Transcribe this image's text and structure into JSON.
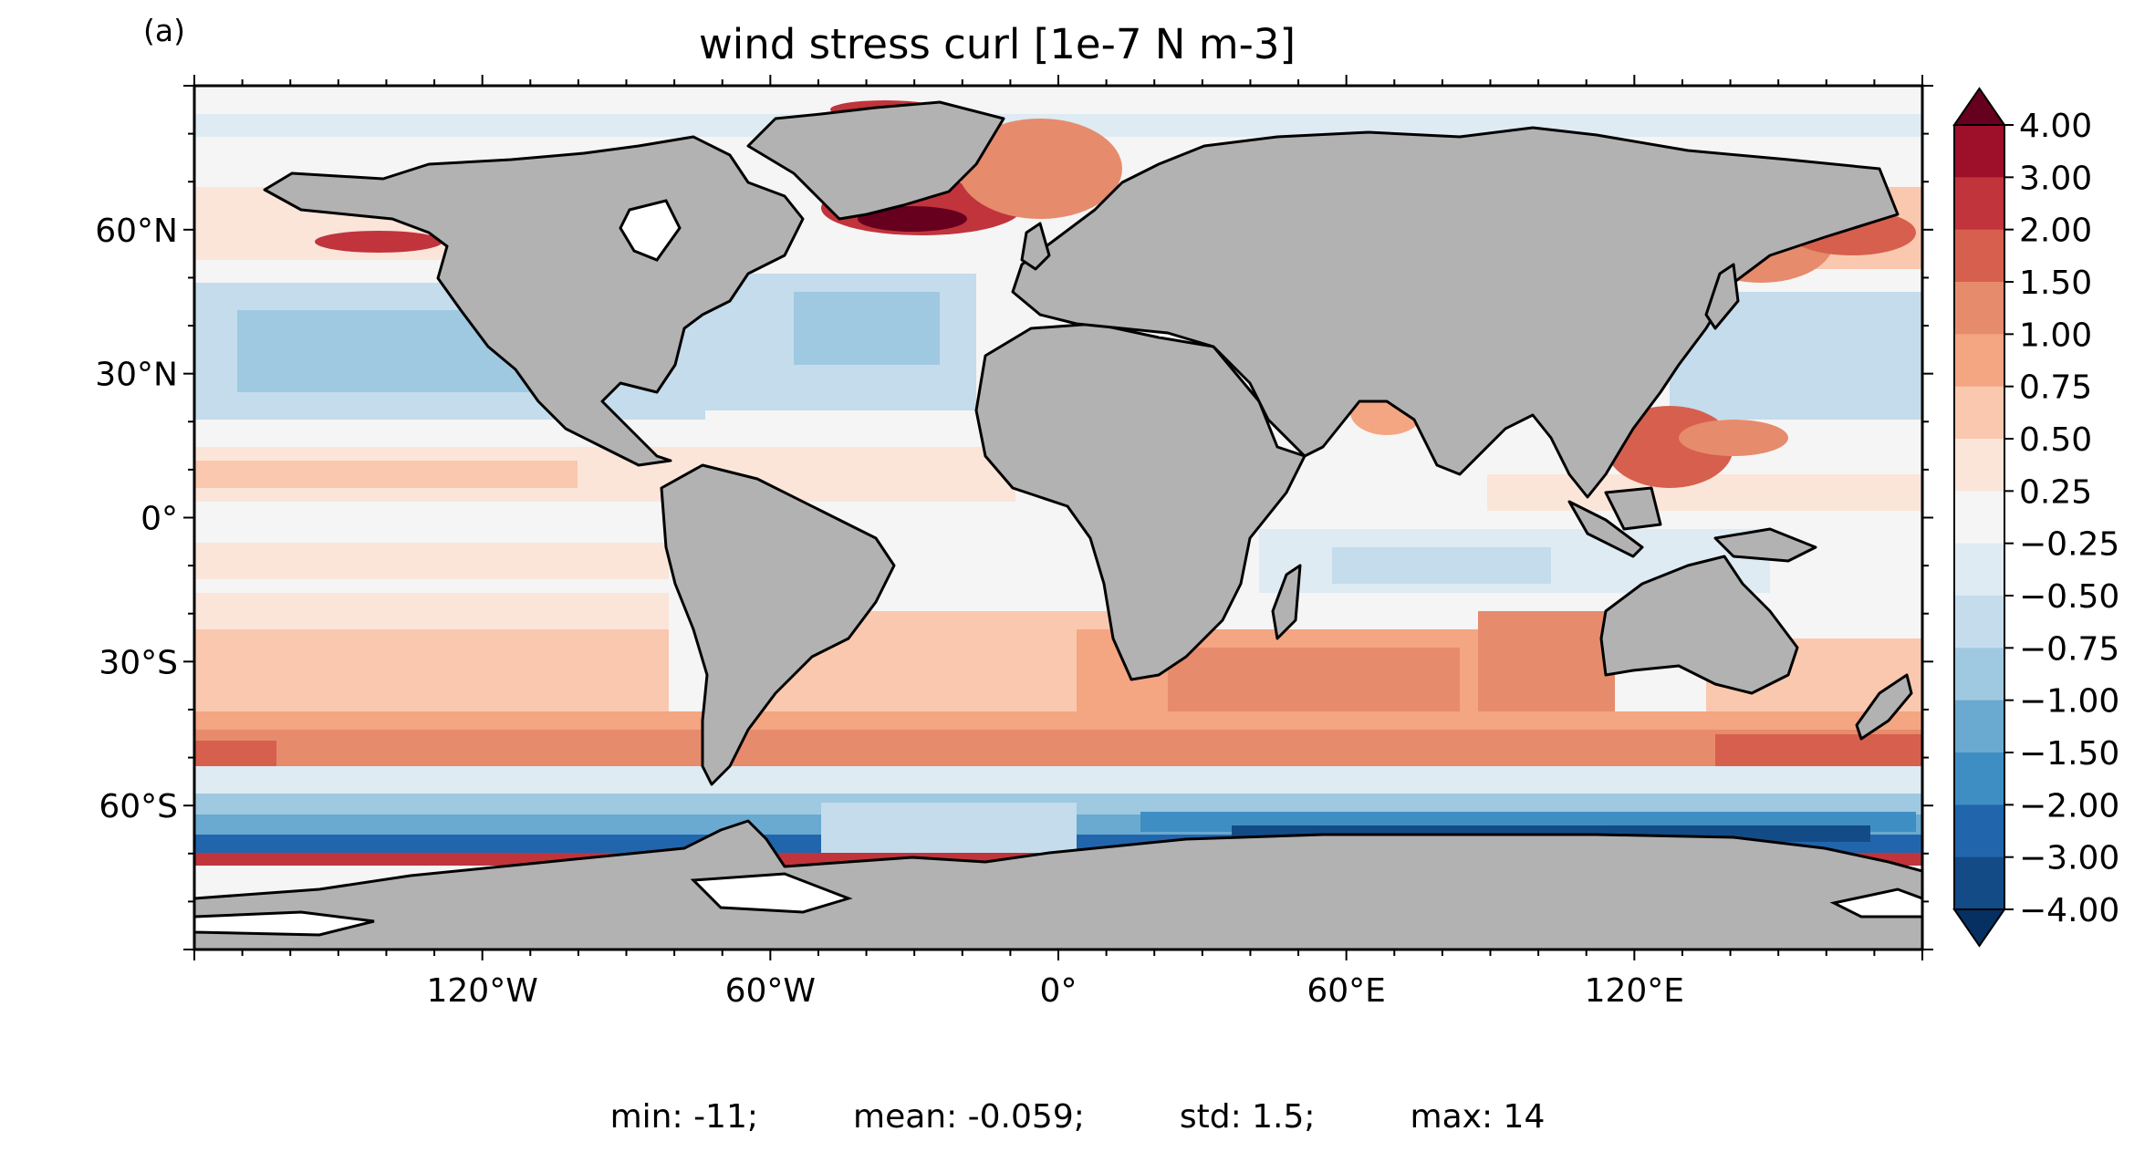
{
  "panel_label": "(a)",
  "title": "wind stress curl [1e-7 N m-3]",
  "stats": {
    "min": "min: -11;",
    "mean": "mean: -0.059;",
    "std": "std: 1.5;",
    "max": "max: 14"
  },
  "map": {
    "projection": "PlateCarree",
    "lon_range": [
      -180,
      180
    ],
    "lat_range": [
      -90,
      90
    ],
    "land_color": "#b2b2b2",
    "ice_color": "#ffffff",
    "coastline_color": "#000000"
  },
  "axes": {
    "lon_ticks": [
      {
        "lon": -120,
        "label": "120°W"
      },
      {
        "lon": -60,
        "label": "60°W"
      },
      {
        "lon": 0,
        "label": "0°"
      },
      {
        "lon": 60,
        "label": "60°E"
      },
      {
        "lon": 120,
        "label": "120°E"
      }
    ],
    "lat_ticks": [
      {
        "lat": 60,
        "label": "60°N"
      },
      {
        "lat": 30,
        "label": "30°N"
      },
      {
        "lat": 0,
        "label": "0°"
      },
      {
        "lat": -30,
        "label": "30°S"
      },
      {
        "lat": -60,
        "label": "60°S"
      }
    ]
  },
  "colorbar": {
    "extend": "both",
    "levels": [
      {
        "label": "4.00",
        "color": "#67001f"
      },
      {
        "label": "3.00",
        "color": "#9e0f2a"
      },
      {
        "label": "2.00",
        "color": "#c1343c"
      },
      {
        "label": "1.50",
        "color": "#d6604d"
      },
      {
        "label": "1.00",
        "color": "#e78b6d"
      },
      {
        "label": "0.75",
        "color": "#f4a582"
      },
      {
        "label": "0.50",
        "color": "#fac8ae"
      },
      {
        "label": "0.25",
        "color": "#fbe5d9"
      },
      {
        "label": "−0.25",
        "color": "#f5f5f5"
      },
      {
        "label": "−0.50",
        "color": "#deebf3"
      },
      {
        "label": "−0.75",
        "color": "#c4dcec"
      },
      {
        "label": "−1.00",
        "color": "#9fc9e1"
      },
      {
        "label": "−1.50",
        "color": "#6aa9d0"
      },
      {
        "label": "−2.00",
        "color": "#3e8ec4"
      },
      {
        "label": "−3.00",
        "color": "#2166ac"
      },
      {
        "label": "−4.00",
        "color": "#134b87"
      }
    ],
    "under_color": "#053061",
    "over_color": "#67001f"
  }
}
